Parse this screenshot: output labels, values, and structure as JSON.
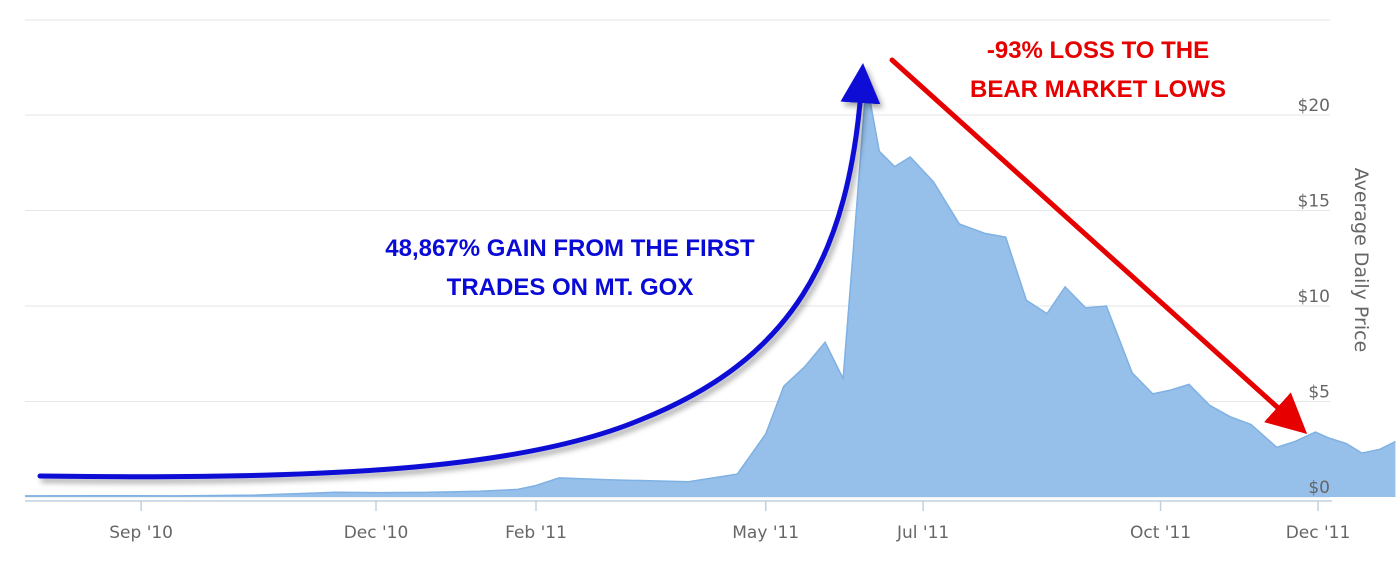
{
  "chart_data": {
    "type": "area",
    "ylabel": "Average Daily Price",
    "ylim": [
      0,
      22
    ],
    "y_ticks": [
      {
        "value": 0,
        "label": "$0"
      },
      {
        "value": 5,
        "label": "$5"
      },
      {
        "value": 10,
        "label": "$10"
      },
      {
        "value": 15,
        "label": "$15"
      },
      {
        "value": 20,
        "label": "$20"
      }
    ],
    "x_ticks": [
      "Sep '10",
      "Dec '10",
      "Feb '11",
      "May '11",
      "Jul '11",
      "Oct '11",
      "Dec '11"
    ],
    "x_tick_dates": [
      "2010-09-01",
      "2010-12-01",
      "2011-02-01",
      "2011-05-01",
      "2011-07-01",
      "2011-10-01",
      "2011-12-01"
    ],
    "grid": true,
    "series": [
      {
        "color": "#90bce9",
        "points": [
          [
            "2010-07-18",
            0.06
          ],
          [
            "2010-08-15",
            0.07
          ],
          [
            "2010-09-15",
            0.06
          ],
          [
            "2010-10-15",
            0.1
          ],
          [
            "2010-11-05",
            0.2
          ],
          [
            "2010-11-15",
            0.25
          ],
          [
            "2010-12-01",
            0.23
          ],
          [
            "2010-12-20",
            0.24
          ],
          [
            "2011-01-10",
            0.3
          ],
          [
            "2011-01-25",
            0.4
          ],
          [
            "2011-02-01",
            0.6
          ],
          [
            "2011-02-10",
            1.0
          ],
          [
            "2011-03-01",
            0.9
          ],
          [
            "2011-04-01",
            0.8
          ],
          [
            "2011-04-20",
            1.2
          ],
          [
            "2011-05-01",
            3.3
          ],
          [
            "2011-05-08",
            5.8
          ],
          [
            "2011-05-16",
            6.8
          ],
          [
            "2011-05-24",
            8.1
          ],
          [
            "2011-05-31",
            6.2
          ],
          [
            "2011-06-04",
            13.0
          ],
          [
            "2011-06-09",
            21.8
          ],
          [
            "2011-06-14",
            18.1
          ],
          [
            "2011-06-20",
            17.3
          ],
          [
            "2011-06-26",
            17.8
          ],
          [
            "2011-07-05",
            16.5
          ],
          [
            "2011-07-15",
            14.3
          ],
          [
            "2011-07-25",
            13.8
          ],
          [
            "2011-08-02",
            13.6
          ],
          [
            "2011-08-10",
            10.3
          ],
          [
            "2011-08-18",
            9.6
          ],
          [
            "2011-08-25",
            11.0
          ],
          [
            "2011-09-02",
            9.9
          ],
          [
            "2011-09-10",
            10.0
          ],
          [
            "2011-09-20",
            6.5
          ],
          [
            "2011-09-28",
            5.4
          ],
          [
            "2011-10-05",
            5.6
          ],
          [
            "2011-10-12",
            5.9
          ],
          [
            "2011-10-20",
            4.8
          ],
          [
            "2011-10-28",
            4.2
          ],
          [
            "2011-11-05",
            3.8
          ],
          [
            "2011-11-15",
            2.6
          ],
          [
            "2011-11-22",
            2.9
          ],
          [
            "2011-11-30",
            3.4
          ],
          [
            "2011-12-05",
            3.1
          ],
          [
            "2011-12-12",
            2.8
          ],
          [
            "2011-12-18",
            2.3
          ],
          [
            "2011-12-25",
            2.5
          ],
          [
            "2011-12-31",
            2.9
          ]
        ]
      }
    ],
    "annotations": {
      "gain_line1": "48,867% GAIN FROM THE FIRST",
      "gain_line2": "TRADES ON MT. GOX",
      "gain_color": "#0a0ad6",
      "loss_line1": "-93% LOSS TO THE",
      "loss_line2": "BEAR MARKET LOWS",
      "loss_color": "#e60000"
    }
  }
}
